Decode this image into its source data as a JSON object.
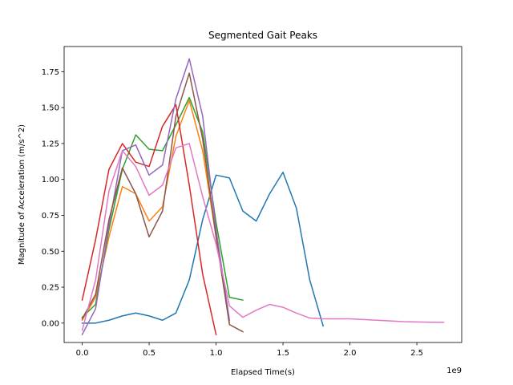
{
  "chart_data": {
    "type": "line",
    "title": "Segmented Gait Peaks",
    "xlabel": "Elapsed Time(s)",
    "ylabel": "Magnitude of Acceleration (m/s^2)",
    "x_offset_text": "1e9",
    "xlim": [
      -0.135,
      2.835
    ],
    "ylim": [
      -0.135,
      1.925
    ],
    "x_ticks": [
      0.0,
      0.5,
      1.0,
      1.5,
      2.0,
      2.5
    ],
    "x_tick_labels": [
      "0.0",
      "0.5",
      "1.0",
      "1.5",
      "2.0",
      "2.5"
    ],
    "y_ticks": [
      0.0,
      0.25,
      0.5,
      0.75,
      1.0,
      1.25,
      1.5,
      1.75
    ],
    "y_tick_labels": [
      "0.00",
      "0.25",
      "0.50",
      "0.75",
      "1.00",
      "1.25",
      "1.50",
      "1.75"
    ],
    "grid": false,
    "series": [
      {
        "color": "#1f77b4",
        "x": [
          0.0,
          0.1,
          0.2,
          0.3,
          0.4,
          0.5,
          0.6,
          0.7,
          0.8,
          0.9,
          1.0,
          1.1,
          1.2,
          1.3,
          1.4,
          1.5,
          1.6,
          1.7,
          1.8
        ],
        "y": [
          0.0,
          0.0,
          0.02,
          0.05,
          0.07,
          0.05,
          0.02,
          0.07,
          0.3,
          0.72,
          1.03,
          1.01,
          0.78,
          0.71,
          0.9,
          1.05,
          0.8,
          0.3,
          -0.02
        ]
      },
      {
        "color": "#ff7f0e",
        "x": [
          0.0,
          0.1,
          0.2,
          0.3,
          0.4,
          0.5,
          0.6,
          0.7,
          0.8,
          0.9,
          1.0,
          1.1
        ],
        "y": [
          0.02,
          0.18,
          0.6,
          0.95,
          0.9,
          0.71,
          0.81,
          1.3,
          1.55,
          1.2,
          0.6,
          0.0
        ]
      },
      {
        "color": "#2ca02c",
        "x": [
          0.0,
          0.1,
          0.2,
          0.3,
          0.4,
          0.5,
          0.6,
          0.7,
          0.8,
          0.9,
          1.0,
          1.1,
          1.2
        ],
        "y": [
          0.04,
          0.13,
          0.65,
          1.07,
          1.31,
          1.21,
          1.2,
          1.38,
          1.57,
          1.33,
          0.7,
          0.18,
          0.16
        ]
      },
      {
        "color": "#d62728",
        "x": [
          0.0,
          0.1,
          0.2,
          0.3,
          0.4,
          0.5,
          0.6,
          0.7,
          0.8,
          0.9,
          1.0
        ],
        "y": [
          0.16,
          0.58,
          1.07,
          1.25,
          1.12,
          1.09,
          1.37,
          1.52,
          0.96,
          0.34,
          -0.08
        ]
      },
      {
        "color": "#9467bd",
        "x": [
          0.0,
          0.1,
          0.2,
          0.3,
          0.4,
          0.5,
          0.6,
          0.7,
          0.8,
          0.9,
          1.0,
          1.1
        ],
        "y": [
          -0.08,
          0.1,
          0.68,
          1.2,
          1.24,
          1.03,
          1.1,
          1.56,
          1.84,
          1.44,
          0.65,
          0.02
        ]
      },
      {
        "color": "#8c564b",
        "x": [
          0.0,
          0.1,
          0.2,
          0.3,
          0.4,
          0.5,
          0.6,
          0.7,
          0.8,
          0.9,
          1.0,
          1.1,
          1.2
        ],
        "y": [
          0.03,
          0.2,
          0.72,
          1.08,
          0.9,
          0.6,
          0.78,
          1.44,
          1.74,
          1.28,
          0.6,
          -0.01,
          -0.06
        ]
      },
      {
        "color": "#e377c2",
        "x": [
          0.0,
          0.1,
          0.2,
          0.3,
          0.4,
          0.5,
          0.6,
          0.7,
          0.8,
          0.9,
          1.0,
          1.1,
          1.2,
          1.3,
          1.4,
          1.5,
          1.6,
          1.7,
          1.8,
          1.9,
          2.0,
          2.1,
          2.2,
          2.3,
          2.4,
          2.5,
          2.6,
          2.7
        ],
        "y": [
          -0.05,
          0.3,
          0.92,
          1.2,
          1.09,
          0.89,
          0.96,
          1.22,
          1.25,
          0.88,
          0.55,
          0.12,
          0.04,
          0.09,
          0.13,
          0.11,
          0.07,
          0.035,
          0.03,
          0.03,
          0.03,
          0.025,
          0.02,
          0.015,
          0.01,
          0.008,
          0.006,
          0.005
        ]
      }
    ]
  }
}
